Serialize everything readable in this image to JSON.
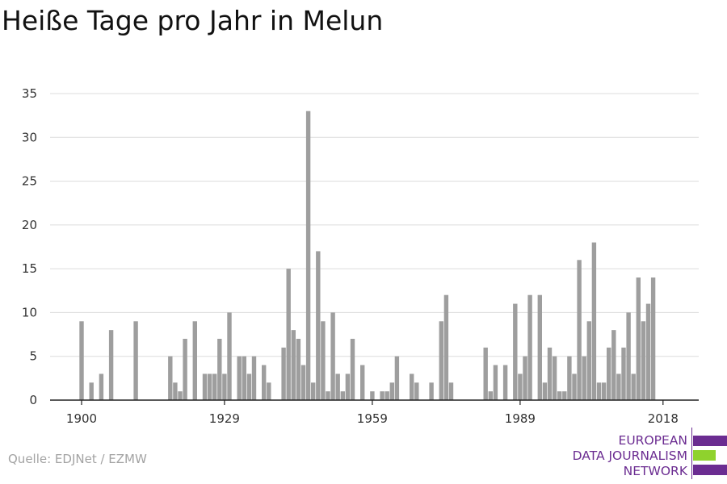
{
  "chart_data": {
    "type": "bar",
    "title": "Heiße Tage pro Jahr in Melun",
    "xlabel": "",
    "ylabel": "",
    "ylim": [
      0,
      35
    ],
    "xlim": [
      1894,
      2023
    ],
    "y_ticks": [
      0,
      5,
      10,
      15,
      20,
      25,
      30,
      35
    ],
    "x_ticks": [
      1900,
      1929,
      1959,
      1989,
      2018
    ],
    "grid": true,
    "bar_color": "#9e9e9e",
    "x": [
      1900,
      1902,
      1904,
      1906,
      1911,
      1918,
      1919,
      1920,
      1921,
      1923,
      1925,
      1926,
      1927,
      1928,
      1929,
      1930,
      1932,
      1933,
      1934,
      1935,
      1937,
      1938,
      1941,
      1942,
      1943,
      1944,
      1945,
      1946,
      1947,
      1948,
      1949,
      1950,
      1951,
      1952,
      1953,
      1954,
      1955,
      1957,
      1959,
      1961,
      1962,
      1963,
      1964,
      1967,
      1968,
      1971,
      1973,
      1974,
      1975,
      1982,
      1983,
      1984,
      1986,
      1988,
      1989,
      1990,
      1991,
      1993,
      1994,
      1995,
      1996,
      1997,
      1998,
      1999,
      2000,
      2001,
      2002,
      2003,
      2004,
      2005,
      2006,
      2007,
      2008,
      2009,
      2010,
      2011,
      2012,
      2013,
      2014,
      2015,
      2016,
      2017,
      2018
    ],
    "values": [
      9,
      2,
      3,
      8,
      9,
      5,
      2,
      1,
      7,
      9,
      3,
      3,
      3,
      7,
      3,
      10,
      5,
      5,
      3,
      5,
      4,
      2,
      6,
      15,
      8,
      7,
      4,
      33,
      2,
      17,
      9,
      1,
      10,
      3,
      1,
      3,
      7,
      4,
      1,
      1,
      1,
      2,
      5,
      3,
      2,
      2,
      9,
      12,
      2,
      6,
      1,
      4,
      4,
      11,
      3,
      5,
      12,
      12,
      2,
      6,
      5,
      1,
      1,
      5,
      3,
      16,
      5,
      9,
      18,
      2,
      2,
      6,
      8,
      3,
      6,
      10,
      3,
      14,
      9,
      11,
      14,
      0,
      0
    ]
  },
  "source_text": "Quelle: EDJNet / EZMW",
  "logo": {
    "line1": "EUROPEAN",
    "line2": "DATA JOURNALISM",
    "line3": "NETWORK",
    "purple": "#6b2c91",
    "green": "#8fd22d"
  }
}
